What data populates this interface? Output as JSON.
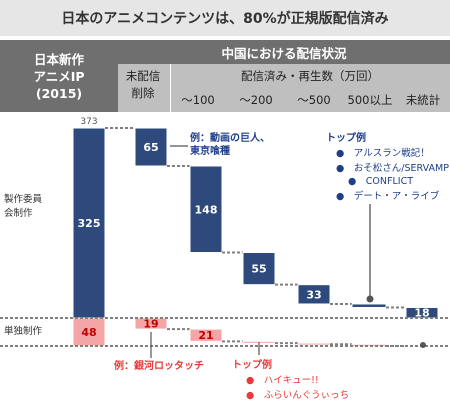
{
  "header": {
    "title": "日本のアニメコンテンツは、80%が正規版配信済み",
    "left_label_lines": [
      "日本新作",
      "アニメIP",
      "(2015)"
    ],
    "right_top_label": "中国における配信状況",
    "unreleased_label_lines": [
      "未配信",
      "削除"
    ],
    "released_label": "配信済み・再生数（万回）",
    "bins": [
      "～100",
      "～200",
      "～500",
      "500以上",
      "未統計"
    ]
  },
  "chart_data": {
    "type": "waterfall",
    "categories": [
      "日本新作アニメIP (2015)",
      "未配信削除",
      "～100",
      "～200",
      "～500",
      "500以上",
      "未統計"
    ],
    "groups": [
      "製作委員会制作",
      "単独制作"
    ],
    "values": {
      "製作委員会制作": [
        325,
        65,
        148,
        55,
        33,
        6,
        18
      ],
      "単独制作": [
        48,
        19,
        21,
        3,
        2,
        3,
        0
      ]
    },
    "total_label": "373",
    "left_labels": [
      "製作委員会制作",
      "単独制作"
    ],
    "colors": {
      "committee": "#2e4a7c",
      "independent": "#f4a6a6",
      "dotted": "#7f7f7f"
    },
    "annotations": [
      {
        "text_lines": [
          "例：動画の巨人、",
          "東京喰種"
        ],
        "color": "#1f3e8a"
      },
      {
        "text_lines": [
          "トップ例",
          "●　アルスラン戦記！",
          "●　おそ松さん/SERVAMP",
          "●　CONFLICT",
          "●　デート・ア・ライブ"
        ],
        "color": "#1f3e8a"
      },
      {
        "text_lines": [
          "例：銀河ロッタッチ"
        ],
        "color": "#e83a3a"
      },
      {
        "text_lines": [
          "トップ例",
          "●　ハイキュー!!",
          "●　ふらいんぐうぃっち"
        ],
        "color": "#e83a3a"
      }
    ]
  }
}
